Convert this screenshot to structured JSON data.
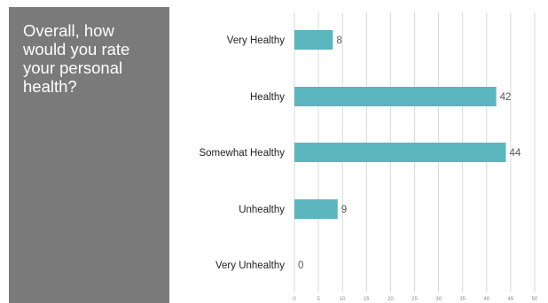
{
  "title_panel": {
    "question": "Overall, how would you rate your personal health?",
    "background_color": "#7a7a7a"
  },
  "chart_data": {
    "type": "bar",
    "orientation": "horizontal",
    "categories": [
      "Very Healthy",
      "Healthy",
      "Somewhat Healthy",
      "Unhealthy",
      "Very Unhealthy"
    ],
    "values": [
      8,
      42,
      44,
      9,
      0
    ],
    "data_labels": [
      "8",
      "42",
      "44",
      "9",
      "0"
    ],
    "xlim": [
      0,
      50
    ],
    "x_ticks": [
      0,
      5,
      10,
      15,
      20,
      25,
      30,
      35,
      40,
      45,
      50
    ],
    "x_tick_labels": [
      "0",
      "5",
      "10",
      "15",
      "20",
      "25",
      "30",
      "35",
      "40",
      "45",
      "50"
    ],
    "title": "",
    "xlabel": "",
    "ylabel": "",
    "grid": "vertical",
    "legend": "none",
    "bar_color": "#5bb5bf",
    "grid_color": "#d9d9d9"
  }
}
